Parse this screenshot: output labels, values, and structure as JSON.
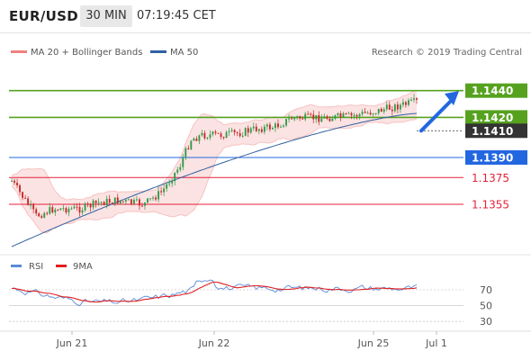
{
  "header": {
    "symbol": "EUR/USD",
    "timeframe": "30 MIN",
    "time": "07:19:45 CET"
  },
  "legend": {
    "bollinger_label": "MA 20 + Bollinger Bands",
    "ma50_label": "MA 50",
    "credit": "Research © 2019 Trading Central",
    "bollinger_color": "#f08080",
    "ma50_color": "#3060a0"
  },
  "rsi_legend": {
    "rsi_label": "RSI",
    "ma_label": "9MA",
    "rsi_color": "#5b8ad8",
    "ma_color": "#e02020"
  },
  "colors": {
    "up_candle": "#2e9b48",
    "down_candle": "#c62828",
    "target_green": "#56a21f",
    "last_price": "#333333",
    "current_blue": "#2267e0",
    "support_red": "#e4223a"
  },
  "chart_data": [
    {
      "type": "candlestick",
      "y_range": [
        1.1318,
        1.1462
      ],
      "levels": [
        {
          "value": 1.144,
          "label": "1.1440",
          "kind": "target"
        },
        {
          "value": 1.142,
          "label": "1.1420",
          "kind": "target"
        },
        {
          "value": 1.141,
          "label": "1.1410",
          "kind": "last"
        },
        {
          "value": 1.139,
          "label": "1.1390",
          "kind": "current"
        },
        {
          "value": 1.1375,
          "label": "1.1375",
          "kind": "support"
        },
        {
          "value": 1.1355,
          "label": "1.1355",
          "kind": "support"
        }
      ],
      "x_ticks": [
        "Jun 21",
        "Jun 22",
        "Jun 25",
        "Jul 1"
      ],
      "series": [
        {
          "name": "MA 20 + Bollinger Bands",
          "role": "bollinger_center"
        },
        {
          "name": "MA 50",
          "role": "ma50"
        }
      ],
      "arrow": {
        "from": 1.141,
        "to": 1.1435
      }
    },
    {
      "type": "line",
      "y_ticks": [
        30,
        50,
        70
      ],
      "y_range": [
        20,
        95
      ],
      "series": [
        {
          "name": "RSI"
        },
        {
          "name": "9MA"
        }
      ]
    }
  ]
}
